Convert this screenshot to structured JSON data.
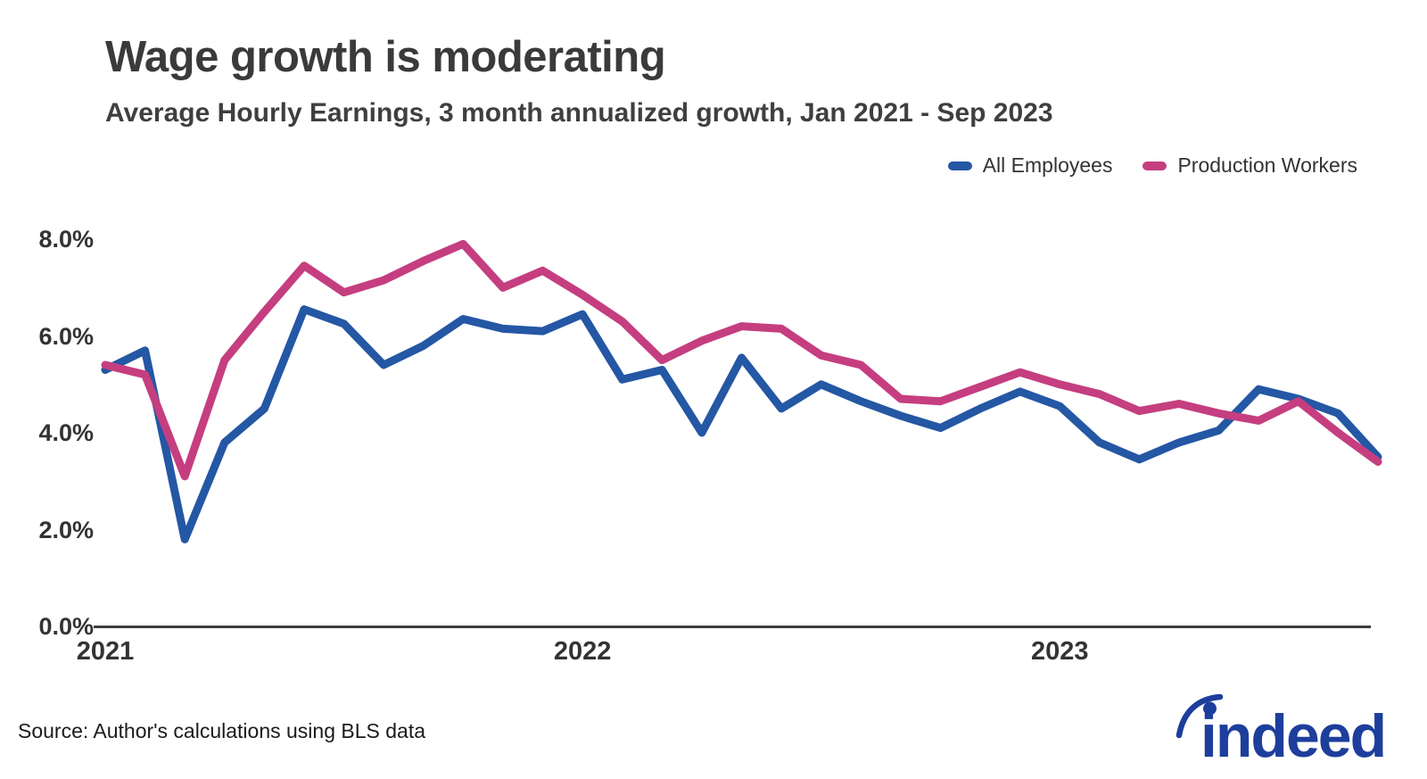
{
  "header": {
    "title": "Wage growth is moderating",
    "subtitle": "Average Hourly Earnings, 3 month annualized growth, Jan 2021 - Sep 2023"
  },
  "legend": {
    "items": [
      {
        "label": "All Employees",
        "color": "#2457a4"
      },
      {
        "label": "Production Workers",
        "color": "#c53e80"
      }
    ]
  },
  "chart_data": {
    "type": "line",
    "title": "Wage growth is moderating",
    "subtitle": "Average Hourly Earnings, 3 month annualized growth, Jan 2021 - Sep 2023",
    "x": [
      "Jan 2021",
      "Feb 2021",
      "Mar 2021",
      "Apr 2021",
      "May 2021",
      "Jun 2021",
      "Jul 2021",
      "Aug 2021",
      "Sep 2021",
      "Oct 2021",
      "Nov 2021",
      "Dec 2021",
      "Jan 2022",
      "Feb 2022",
      "Mar 2022",
      "Apr 2022",
      "May 2022",
      "Jun 2022",
      "Jul 2022",
      "Aug 2022",
      "Sep 2022",
      "Oct 2022",
      "Nov 2022",
      "Dec 2022",
      "Jan 2023",
      "Feb 2023",
      "Mar 2023",
      "Apr 2023",
      "May 2023",
      "Jun 2023",
      "Jul 2023",
      "Aug 2023",
      "Sep 2023"
    ],
    "series": [
      {
        "name": "All Employees",
        "color": "#2457a4",
        "values": [
          5.3,
          5.7,
          1.8,
          3.8,
          4.5,
          6.55,
          6.25,
          5.4,
          5.8,
          6.35,
          6.15,
          6.1,
          6.45,
          5.1,
          5.3,
          4.0,
          5.55,
          4.5,
          5.0,
          4.65,
          4.35,
          4.1,
          4.5,
          4.85,
          4.55,
          3.8,
          3.45,
          3.8,
          4.05,
          4.9,
          4.7,
          4.4,
          3.5
        ]
      },
      {
        "name": "Production Workers",
        "color": "#c53e80",
        "values": [
          5.4,
          5.2,
          3.1,
          5.5,
          6.5,
          7.45,
          6.9,
          7.15,
          7.55,
          7.9,
          7.0,
          7.35,
          6.85,
          6.3,
          5.5,
          5.9,
          6.2,
          6.15,
          5.6,
          5.4,
          4.7,
          4.65,
          4.95,
          5.25,
          5.0,
          4.8,
          4.45,
          4.6,
          4.4,
          4.25,
          4.65,
          4.0,
          3.4
        ]
      }
    ],
    "ylabel": "",
    "xlabel": "",
    "ylim": [
      0,
      8.8
    ],
    "yticks": [
      0,
      2,
      4,
      6,
      8
    ],
    "ytick_labels": [
      "0.0%",
      "2.0%",
      "4.0%",
      "6.0%",
      "8.0%"
    ],
    "x_year_labels": [
      {
        "label": "2021",
        "month_index": 0
      },
      {
        "label": "2022",
        "month_index": 12
      },
      {
        "label": "2023",
        "month_index": 24
      }
    ],
    "grid": false,
    "legend_position": "top-right",
    "axis_color": "#3d3d3d"
  },
  "footer": {
    "source": "Source: Author's calculations using BLS data",
    "logo_text": "indeed",
    "logo_color": "#1d3e9c"
  }
}
